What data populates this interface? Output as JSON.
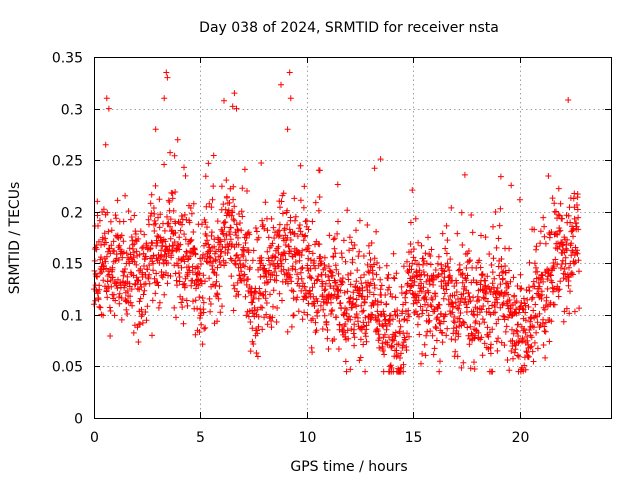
{
  "chart_data": {
    "type": "scatter",
    "title": "Day 038 of 2024, SRMTID for receiver nsta",
    "xlabel": "GPS time / hours",
    "ylabel": "SRMTID / TECUs",
    "xlim": [
      0,
      24.3
    ],
    "ylim": [
      0,
      0.35
    ],
    "x_ticks": [
      0,
      5,
      10,
      15,
      20
    ],
    "y_ticks": [
      0,
      0.05,
      0.1,
      0.15,
      0.2,
      0.25,
      0.3,
      0.35
    ],
    "x_tick_labels": [
      "0",
      "5",
      "10",
      "15",
      "20"
    ],
    "y_tick_labels": [
      "0",
      "0.05",
      "0.1",
      "0.15",
      "0.2",
      "0.25",
      "0.3",
      "0.35"
    ],
    "grid": true,
    "marker": "+",
    "color": "#ff0000",
    "series": [
      {
        "name": "SRMTID",
        "profile_x": [
          0,
          0.5,
          1,
          1.5,
          2,
          2.5,
          3,
          3.5,
          4,
          4.5,
          5,
          5.5,
          6,
          6.5,
          7,
          7.5,
          8,
          8.5,
          9,
          9.5,
          10,
          10.5,
          11,
          11.5,
          12,
          12.5,
          13,
          13.5,
          14,
          14.5,
          15,
          15.5,
          16,
          16.5,
          17,
          17.5,
          18,
          18.5,
          19,
          19.5,
          20,
          20.5,
          21,
          21.5,
          22,
          22.5,
          22.8
        ],
        "profile_y": [
          0.12,
          0.16,
          0.15,
          0.14,
          0.13,
          0.15,
          0.16,
          0.17,
          0.16,
          0.15,
          0.14,
          0.15,
          0.17,
          0.19,
          0.15,
          0.12,
          0.13,
          0.15,
          0.16,
          0.15,
          0.14,
          0.13,
          0.13,
          0.12,
          0.11,
          0.12,
          0.12,
          0.11,
          0.08,
          0.09,
          0.13,
          0.12,
          0.11,
          0.12,
          0.11,
          0.11,
          0.11,
          0.11,
          0.12,
          0.12,
          0.08,
          0.1,
          0.12,
          0.14,
          0.16,
          0.16,
          0.16
        ],
        "spike_x": [
          0.6,
          0.7,
          3.4,
          3.45,
          3.3,
          6.6,
          6.7,
          9.2,
          9.25,
          9.1,
          2.9,
          0.55
        ],
        "spike_y": [
          0.31,
          0.3,
          0.335,
          0.33,
          0.31,
          0.315,
          0.3,
          0.335,
          0.31,
          0.28,
          0.28,
          0.265
        ],
        "x_span": [
          0,
          22.8
        ],
        "point_count": 2200
      }
    ]
  }
}
